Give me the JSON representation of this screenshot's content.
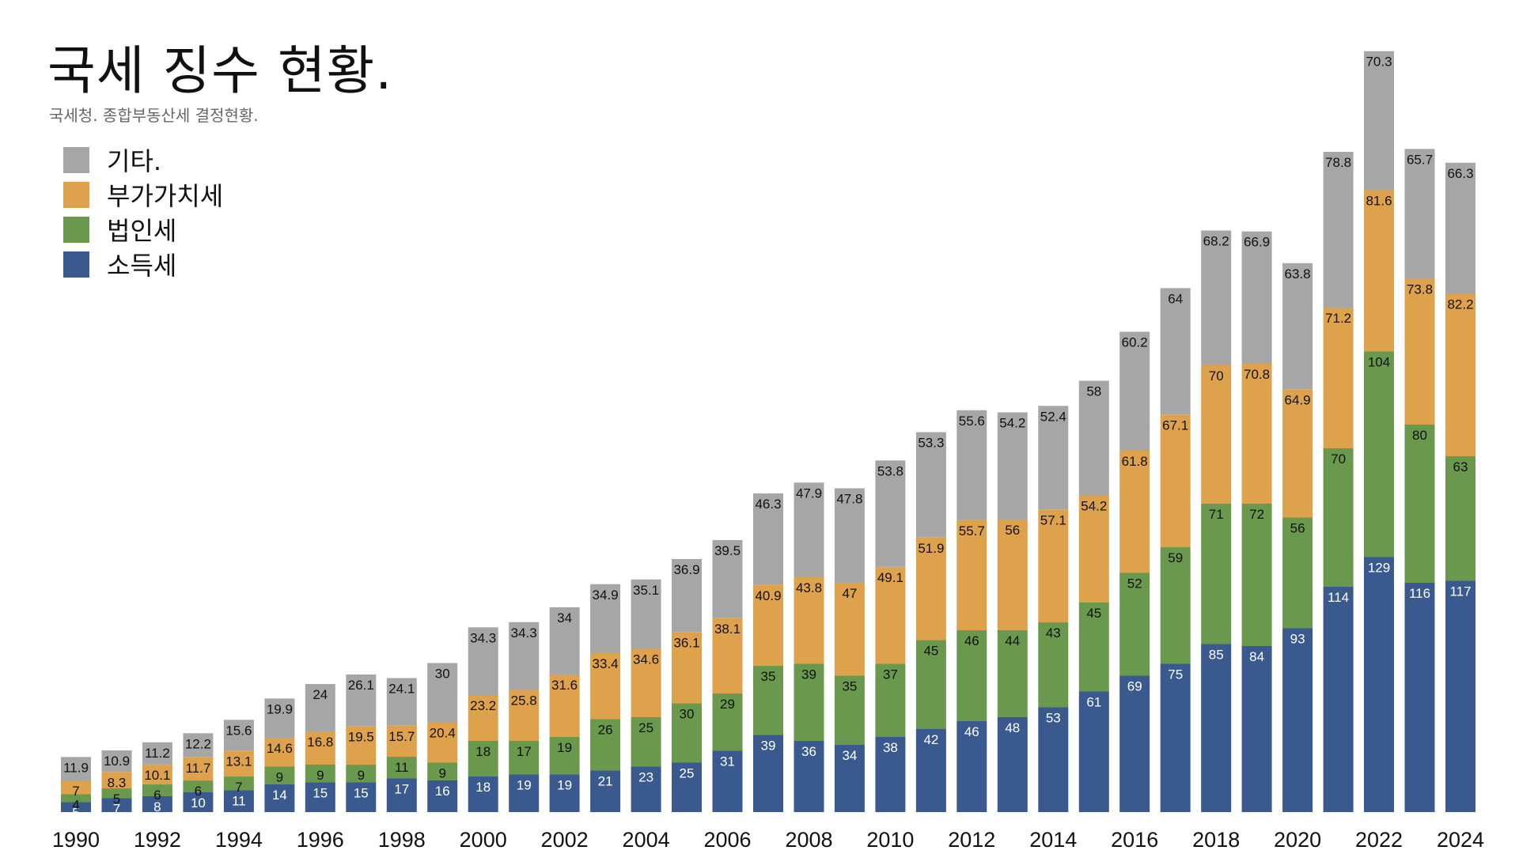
{
  "header": {
    "title": "국세 징수 현황.",
    "subtitle": "국세청. 종합부동산세 결정현황."
  },
  "colors": {
    "income": "#3a5a8f",
    "corporate": "#6a994e",
    "vat": "#dfa24c",
    "other": "#a6a6a6"
  },
  "chart_data": {
    "type": "bar",
    "stacked": true,
    "title": "국세 징수 현황.",
    "subtitle": "국세청. 종합부동산세 결정현황.",
    "legend_position": "top-left",
    "grid": false,
    "categories": [
      "1990",
      "1991",
      "1992",
      "1993",
      "1994",
      "1995",
      "1996",
      "1997",
      "1998",
      "1999",
      "2000",
      "2001",
      "2002",
      "2003",
      "2004",
      "2005",
      "2006",
      "2007",
      "2008",
      "2009",
      "2010",
      "2011",
      "2012",
      "2013",
      "2014",
      "2015",
      "2016",
      "2017",
      "2018",
      "2019",
      "2020",
      "2021",
      "2022",
      "2023",
      "2024"
    ],
    "x_tick_labels": [
      "1990",
      "1992",
      "1994",
      "1996",
      "1998",
      "2000",
      "2002",
      "2004",
      "2006",
      "2008",
      "2010",
      "2012",
      "2014",
      "2016",
      "2018",
      "2020",
      "2022",
      "2024"
    ],
    "series": [
      {
        "name": "소득세",
        "color_key": "income",
        "label_color": "#ffffff",
        "values": [
          5,
          7,
          8,
          10,
          11,
          14,
          15,
          15,
          17,
          16,
          18,
          19,
          19,
          21,
          23,
          25,
          31,
          39,
          36,
          34,
          38,
          42,
          46,
          48,
          53,
          61,
          69,
          75,
          85,
          84,
          93,
          114,
          129,
          116,
          117
        ]
      },
      {
        "name": "법인세",
        "color_key": "corporate",
        "label_color": "#111111",
        "values": [
          4,
          5,
          6,
          6,
          7,
          9,
          9,
          9,
          11,
          9,
          18,
          17,
          19,
          26,
          25,
          30,
          29,
          35,
          39,
          35,
          37,
          45,
          46,
          44,
          43,
          45,
          52,
          59,
          71,
          72,
          56,
          70,
          104,
          80,
          63
        ]
      },
      {
        "name": "부가가치세",
        "color_key": "vat",
        "label_color": "#111111",
        "values": [
          7,
          8.3,
          10.1,
          11.7,
          13.1,
          14.6,
          16.8,
          19.5,
          15.7,
          20.4,
          23.2,
          25.8,
          31.6,
          33.4,
          34.6,
          36.1,
          38.1,
          40.9,
          43.8,
          47,
          49.1,
          51.9,
          55.7,
          56,
          57.1,
          54.2,
          61.8,
          67.1,
          70,
          70.8,
          64.9,
          71.2,
          81.6,
          73.8,
          82.2
        ]
      },
      {
        "name": "기타.",
        "color_key": "other",
        "label_color": "#111111",
        "values": [
          11.9,
          10.9,
          11.2,
          12.2,
          15.6,
          19.9,
          24,
          26.1,
          24.1,
          30,
          34.3,
          34.3,
          34,
          34.9,
          35.1,
          36.9,
          39.5,
          46.3,
          47.9,
          47.8,
          53.8,
          53.3,
          55.6,
          54.2,
          52.4,
          58,
          60.2,
          64,
          68.2,
          66.9,
          63.8,
          78.8,
          70.3,
          65.7,
          66.3
        ]
      }
    ],
    "legend_order": [
      "기타.",
      "부가가치세",
      "법인세",
      "소득세"
    ],
    "ylim": [
      0,
      390
    ]
  }
}
